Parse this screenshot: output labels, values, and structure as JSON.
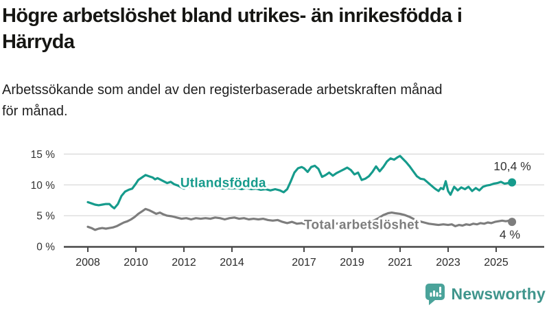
{
  "title": {
    "text": "Högre arbetslöshet bland utrikes- än inrikesfödda i Härryda",
    "lines": [
      "Högre arbetslöshet bland utrikes- än inrikesfödda i",
      "Härryda"
    ]
  },
  "subtitle": {
    "text": "Arbetssökande som andel av den registerbaserade arbetskraften månad för månad.",
    "lines": [
      "Arbetssökande som andel av den registerbaserade arbetskraften månad",
      "för månad."
    ]
  },
  "branding": {
    "logo_text": "Newsworthy",
    "logo_icon": "newsworthy-speech-bubble-bar-chart-icon",
    "icon_color": "#4aa39a",
    "text_color": "#3f958c"
  },
  "chart_data": {
    "type": "line",
    "title": "Högre arbetslöshet bland utrikes- än inrikesfödda i Härryda",
    "xlabel": "",
    "ylabel": "",
    "grid": true,
    "x_axis": {
      "range": [
        2007,
        2027
      ],
      "tick_values": [
        2008,
        2010,
        2012,
        2014,
        2017,
        2019,
        2021,
        2023,
        2025
      ],
      "tick_labels": [
        "2008",
        "2010",
        "2012",
        "2014",
        "2017",
        "2019",
        "2021",
        "2023",
        "2025"
      ]
    },
    "y_axis": {
      "range": [
        0,
        15
      ],
      "unit": "%",
      "tick_values": [
        0,
        5,
        10,
        15
      ],
      "tick_labels": [
        "0 %",
        "5 %",
        "10 %",
        "15 %"
      ]
    },
    "colors": {
      "gridline": "#d8d8d8",
      "axis": "#474747",
      "tick_label": "#2a2a2a",
      "value_label": "#333333"
    },
    "series": [
      {
        "name": "Utlandsfödda",
        "slug": "utlandsfodda",
        "color": "#169b8c",
        "end_dot": true,
        "label": {
          "x": 2011.85,
          "y": 10.35,
          "anchor": "start"
        },
        "end_label": {
          "text": "10,4 %",
          "x": 2026.45,
          "y": 13.05,
          "anchor": "end"
        },
        "points": [
          [
            2008.0,
            7.2
          ],
          [
            2008.15,
            7.0
          ],
          [
            2008.3,
            6.8
          ],
          [
            2008.45,
            6.7
          ],
          [
            2008.6,
            6.8
          ],
          [
            2008.75,
            6.9
          ],
          [
            2008.9,
            6.9
          ],
          [
            2009.0,
            6.5
          ],
          [
            2009.1,
            6.2
          ],
          [
            2009.25,
            6.9
          ],
          [
            2009.4,
            8.2
          ],
          [
            2009.55,
            8.9
          ],
          [
            2009.7,
            9.2
          ],
          [
            2009.85,
            9.4
          ],
          [
            2010.0,
            10.2
          ],
          [
            2010.1,
            10.8
          ],
          [
            2010.25,
            11.2
          ],
          [
            2010.4,
            11.6
          ],
          [
            2010.55,
            11.4
          ],
          [
            2010.7,
            11.2
          ],
          [
            2010.8,
            10.9
          ],
          [
            2010.9,
            11.1
          ],
          [
            2011.0,
            10.9
          ],
          [
            2011.15,
            10.6
          ],
          [
            2011.3,
            10.3
          ],
          [
            2011.45,
            10.5
          ],
          [
            2011.6,
            10.1
          ],
          [
            2011.75,
            9.9
          ],
          [
            2011.9,
            9.6
          ],
          [
            2012.0,
            9.4
          ],
          [
            2012.2,
            9.7
          ],
          [
            2012.4,
            9.5
          ],
          [
            2012.6,
            9.7
          ],
          [
            2012.8,
            9.5
          ],
          [
            2013.0,
            9.6
          ],
          [
            2013.2,
            9.5
          ],
          [
            2013.4,
            9.6
          ],
          [
            2013.6,
            9.4
          ],
          [
            2013.8,
            9.5
          ],
          [
            2014.0,
            9.4
          ],
          [
            2014.2,
            9.5
          ],
          [
            2014.4,
            9.3
          ],
          [
            2014.6,
            9.5
          ],
          [
            2014.8,
            9.3
          ],
          [
            2015.0,
            9.4
          ],
          [
            2015.2,
            9.2
          ],
          [
            2015.4,
            9.3
          ],
          [
            2015.6,
            9.1
          ],
          [
            2015.8,
            9.3
          ],
          [
            2016.0,
            9.1
          ],
          [
            2016.15,
            8.8
          ],
          [
            2016.3,
            9.3
          ],
          [
            2016.45,
            10.6
          ],
          [
            2016.6,
            12.0
          ],
          [
            2016.75,
            12.7
          ],
          [
            2016.9,
            12.9
          ],
          [
            2017.0,
            12.7
          ],
          [
            2017.15,
            12.1
          ],
          [
            2017.3,
            12.9
          ],
          [
            2017.45,
            13.1
          ],
          [
            2017.6,
            12.6
          ],
          [
            2017.75,
            11.3
          ],
          [
            2017.9,
            11.6
          ],
          [
            2018.05,
            12.0
          ],
          [
            2018.2,
            11.5
          ],
          [
            2018.35,
            11.9
          ],
          [
            2018.5,
            12.2
          ],
          [
            2018.65,
            12.5
          ],
          [
            2018.8,
            12.8
          ],
          [
            2018.95,
            12.4
          ],
          [
            2019.1,
            11.7
          ],
          [
            2019.25,
            12.0
          ],
          [
            2019.4,
            10.8
          ],
          [
            2019.55,
            11.0
          ],
          [
            2019.7,
            11.4
          ],
          [
            2019.85,
            12.1
          ],
          [
            2020.0,
            13.0
          ],
          [
            2020.15,
            12.2
          ],
          [
            2020.3,
            12.9
          ],
          [
            2020.45,
            13.8
          ],
          [
            2020.6,
            14.3
          ],
          [
            2020.75,
            14.1
          ],
          [
            2020.9,
            14.5
          ],
          [
            2021.0,
            14.7
          ],
          [
            2021.1,
            14.3
          ],
          [
            2021.25,
            13.7
          ],
          [
            2021.4,
            13.0
          ],
          [
            2021.55,
            12.2
          ],
          [
            2021.7,
            11.4
          ],
          [
            2021.85,
            11.0
          ],
          [
            2022.0,
            10.9
          ],
          [
            2022.15,
            10.4
          ],
          [
            2022.3,
            9.9
          ],
          [
            2022.45,
            9.4
          ],
          [
            2022.6,
            9.0
          ],
          [
            2022.7,
            9.5
          ],
          [
            2022.8,
            9.3
          ],
          [
            2022.9,
            10.6
          ],
          [
            2023.0,
            9.0
          ],
          [
            2023.1,
            8.4
          ],
          [
            2023.25,
            9.7
          ],
          [
            2023.4,
            9.1
          ],
          [
            2023.55,
            9.6
          ],
          [
            2023.7,
            9.3
          ],
          [
            2023.85,
            9.7
          ],
          [
            2024.0,
            9.0
          ],
          [
            2024.15,
            9.5
          ],
          [
            2024.3,
            9.1
          ],
          [
            2024.45,
            9.7
          ],
          [
            2024.6,
            9.9
          ],
          [
            2024.75,
            10.0
          ],
          [
            2024.9,
            10.2
          ],
          [
            2025.05,
            10.3
          ],
          [
            2025.2,
            10.5
          ],
          [
            2025.35,
            10.2
          ],
          [
            2025.5,
            10.3
          ],
          [
            2025.66,
            10.4
          ]
        ]
      },
      {
        "name": "Total arbetslöshet",
        "slug": "total-arbetsloshet",
        "color": "#7d7d7d",
        "end_dot": true,
        "label": {
          "x": 2017.0,
          "y": 3.55,
          "anchor": "start"
        },
        "end_label": {
          "text": "4 %",
          "x": 2026.0,
          "y": 1.95,
          "anchor": "end"
        },
        "points": [
          [
            2008.0,
            3.2
          ],
          [
            2008.15,
            3.0
          ],
          [
            2008.3,
            2.7
          ],
          [
            2008.45,
            2.9
          ],
          [
            2008.6,
            3.0
          ],
          [
            2008.75,
            2.9
          ],
          [
            2008.9,
            3.0
          ],
          [
            2009.05,
            3.1
          ],
          [
            2009.2,
            3.3
          ],
          [
            2009.35,
            3.6
          ],
          [
            2009.5,
            3.9
          ],
          [
            2009.65,
            4.1
          ],
          [
            2009.8,
            4.4
          ],
          [
            2009.95,
            4.8
          ],
          [
            2010.1,
            5.3
          ],
          [
            2010.25,
            5.7
          ],
          [
            2010.4,
            6.1
          ],
          [
            2010.55,
            5.9
          ],
          [
            2010.7,
            5.6
          ],
          [
            2010.85,
            5.3
          ],
          [
            2011.0,
            5.5
          ],
          [
            2011.15,
            5.2
          ],
          [
            2011.3,
            5.0
          ],
          [
            2011.5,
            4.9
          ],
          [
            2011.7,
            4.7
          ],
          [
            2011.9,
            4.5
          ],
          [
            2012.1,
            4.6
          ],
          [
            2012.3,
            4.4
          ],
          [
            2012.5,
            4.6
          ],
          [
            2012.7,
            4.5
          ],
          [
            2012.9,
            4.6
          ],
          [
            2013.1,
            4.5
          ],
          [
            2013.3,
            4.7
          ],
          [
            2013.5,
            4.6
          ],
          [
            2013.7,
            4.4
          ],
          [
            2013.9,
            4.6
          ],
          [
            2014.1,
            4.7
          ],
          [
            2014.3,
            4.5
          ],
          [
            2014.5,
            4.6
          ],
          [
            2014.7,
            4.4
          ],
          [
            2014.9,
            4.5
          ],
          [
            2015.1,
            4.4
          ],
          [
            2015.3,
            4.5
          ],
          [
            2015.5,
            4.3
          ],
          [
            2015.7,
            4.2
          ],
          [
            2015.9,
            4.3
          ],
          [
            2016.1,
            4.0
          ],
          [
            2016.3,
            3.8
          ],
          [
            2016.5,
            4.0
          ],
          [
            2016.7,
            3.7
          ],
          [
            2016.9,
            3.8
          ],
          [
            2017.1,
            3.6
          ],
          [
            2017.3,
            3.5
          ],
          [
            2017.5,
            3.6
          ],
          [
            2017.7,
            3.6
          ],
          [
            2017.9,
            3.7
          ],
          [
            2018.1,
            3.8
          ],
          [
            2018.3,
            3.7
          ],
          [
            2018.5,
            3.8
          ],
          [
            2018.7,
            3.9
          ],
          [
            2018.9,
            3.8
          ],
          [
            2019.1,
            3.9
          ],
          [
            2019.3,
            4.0
          ],
          [
            2019.5,
            3.9
          ],
          [
            2019.7,
            4.0
          ],
          [
            2019.9,
            4.2
          ],
          [
            2020.1,
            4.6
          ],
          [
            2020.3,
            5.1
          ],
          [
            2020.5,
            5.4
          ],
          [
            2020.65,
            5.5
          ],
          [
            2020.8,
            5.4
          ],
          [
            2021.0,
            5.3
          ],
          [
            2021.2,
            5.1
          ],
          [
            2021.4,
            4.8
          ],
          [
            2021.6,
            4.4
          ],
          [
            2021.8,
            4.1
          ],
          [
            2022.0,
            3.9
          ],
          [
            2022.2,
            3.7
          ],
          [
            2022.4,
            3.6
          ],
          [
            2022.6,
            3.5
          ],
          [
            2022.8,
            3.6
          ],
          [
            2023.0,
            3.5
          ],
          [
            2023.15,
            3.6
          ],
          [
            2023.3,
            3.3
          ],
          [
            2023.45,
            3.5
          ],
          [
            2023.6,
            3.4
          ],
          [
            2023.75,
            3.6
          ],
          [
            2023.9,
            3.5
          ],
          [
            2024.05,
            3.7
          ],
          [
            2024.2,
            3.6
          ],
          [
            2024.35,
            3.8
          ],
          [
            2024.5,
            3.7
          ],
          [
            2024.65,
            3.9
          ],
          [
            2024.8,
            3.8
          ],
          [
            2024.95,
            4.0
          ],
          [
            2025.1,
            4.1
          ],
          [
            2025.25,
            4.2
          ],
          [
            2025.4,
            4.1
          ],
          [
            2025.55,
            4.2
          ],
          [
            2025.66,
            4.0
          ]
        ]
      }
    ]
  }
}
